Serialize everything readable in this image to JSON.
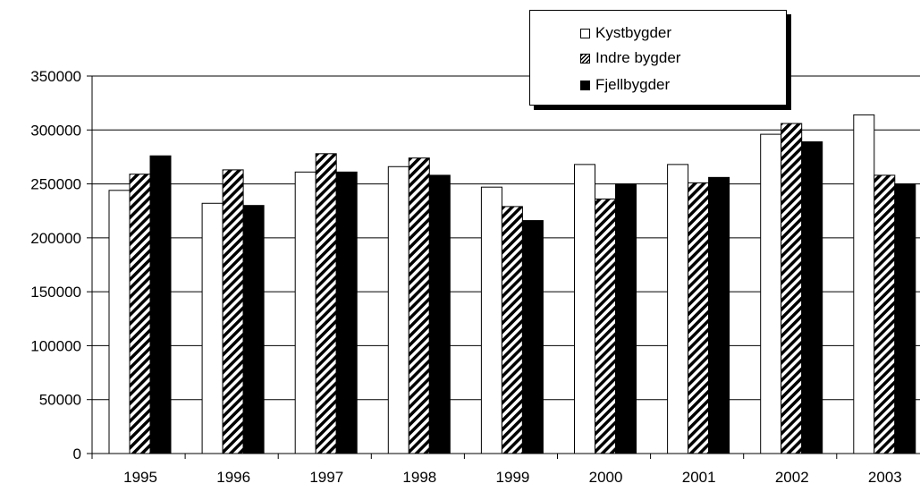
{
  "chart_data": {
    "type": "bar",
    "categories": [
      "1995",
      "1996",
      "1997",
      "1998",
      "1999",
      "2000",
      "2001",
      "2002",
      "2003"
    ],
    "series": [
      {
        "name": "Kystbygder",
        "fill": "white",
        "values": [
          244000,
          232000,
          261000,
          266000,
          247000,
          268000,
          268000,
          296000,
          314000
        ]
      },
      {
        "name": "Indre bygder",
        "fill": "hatched",
        "values": [
          259000,
          263000,
          278000,
          274000,
          229000,
          236000,
          251000,
          306000,
          258000
        ]
      },
      {
        "name": "Fjellbygder",
        "fill": "black",
        "values": [
          276000,
          230000,
          261000,
          258000,
          216000,
          250000,
          256000,
          289000,
          250000
        ]
      }
    ],
    "y_ticks": [
      "0",
      "50000",
      "100000",
      "150000",
      "200000",
      "250000",
      "300000",
      "350000"
    ],
    "ylim": [
      0,
      350000
    ],
    "grid": true,
    "legend": "top-right",
    "title": "",
    "xlabel": "",
    "ylabel": ""
  }
}
